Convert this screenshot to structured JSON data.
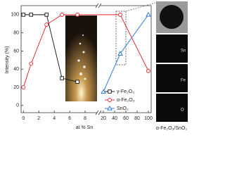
{
  "chart_data": {
    "type": "line",
    "x_label": "at % Sn",
    "y_label": "Intensity (%)",
    "xlim": [
      [
        -0.3,
        9.5
      ],
      [
        15,
        105
      ]
    ],
    "xticks": [
      [
        0,
        2,
        4,
        6,
        8
      ],
      [
        20,
        40,
        60,
        80,
        100
      ]
    ],
    "ylim": [
      -8,
      110
    ],
    "yticks": [
      0,
      20,
      40,
      60,
      80,
      100
    ],
    "grid": false,
    "legend": "lower right",
    "series": [
      {
        "name": "γ-Fe₂O₃",
        "color": "#111111",
        "marker": "square",
        "x": [
          0,
          1,
          3,
          5,
          7
        ],
        "values": [
          100,
          100,
          100,
          30,
          26
        ]
      },
      {
        "name": "α-Fe₂O₃",
        "color": "#e8202a",
        "marker": "circle",
        "x": [
          0,
          1,
          3,
          5,
          7,
          50,
          100
        ],
        "values": [
          20,
          46,
          89,
          100,
          100,
          100,
          38
        ]
      },
      {
        "name": "SnO₂",
        "color": "#1f6fe0",
        "marker": "triangle",
        "x": [
          20,
          50,
          100
        ],
        "values": [
          15,
          57,
          100
        ]
      }
    ],
    "annotations": [
      "Sn",
      "Fe",
      "O",
      "α-Fe₂O₃/SnO₂"
    ]
  }
}
